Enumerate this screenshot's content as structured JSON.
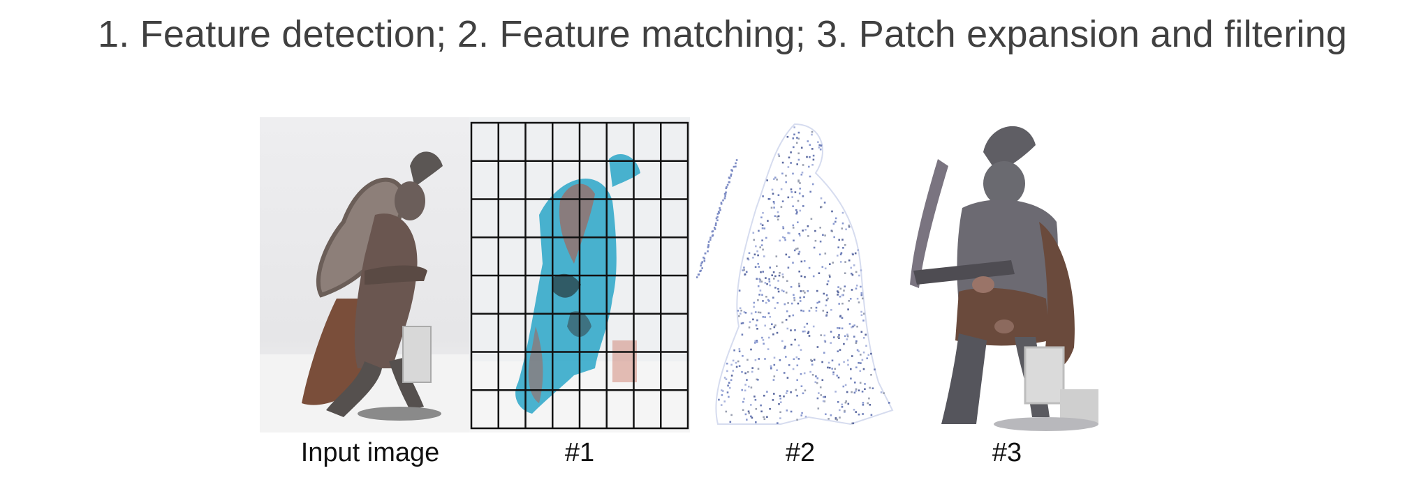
{
  "title": "1. Feature detection;  2. Feature matching;  3. Patch expansion and filtering",
  "panels": [
    {
      "id": "input",
      "caption": "Input image"
    },
    {
      "id": "step1",
      "caption": "#1"
    },
    {
      "id": "step2",
      "caption": "#2"
    },
    {
      "id": "step3",
      "caption": "#3"
    }
  ],
  "grid": {
    "columns": 8,
    "rows": 8
  },
  "colors": {
    "feature_cyan": "#2aa6c8",
    "feature_red": "#c0503a",
    "point_blue": "#8a9ad0",
    "statue_dark": "#4a4240",
    "cape_brown": "#7a4e3a"
  }
}
